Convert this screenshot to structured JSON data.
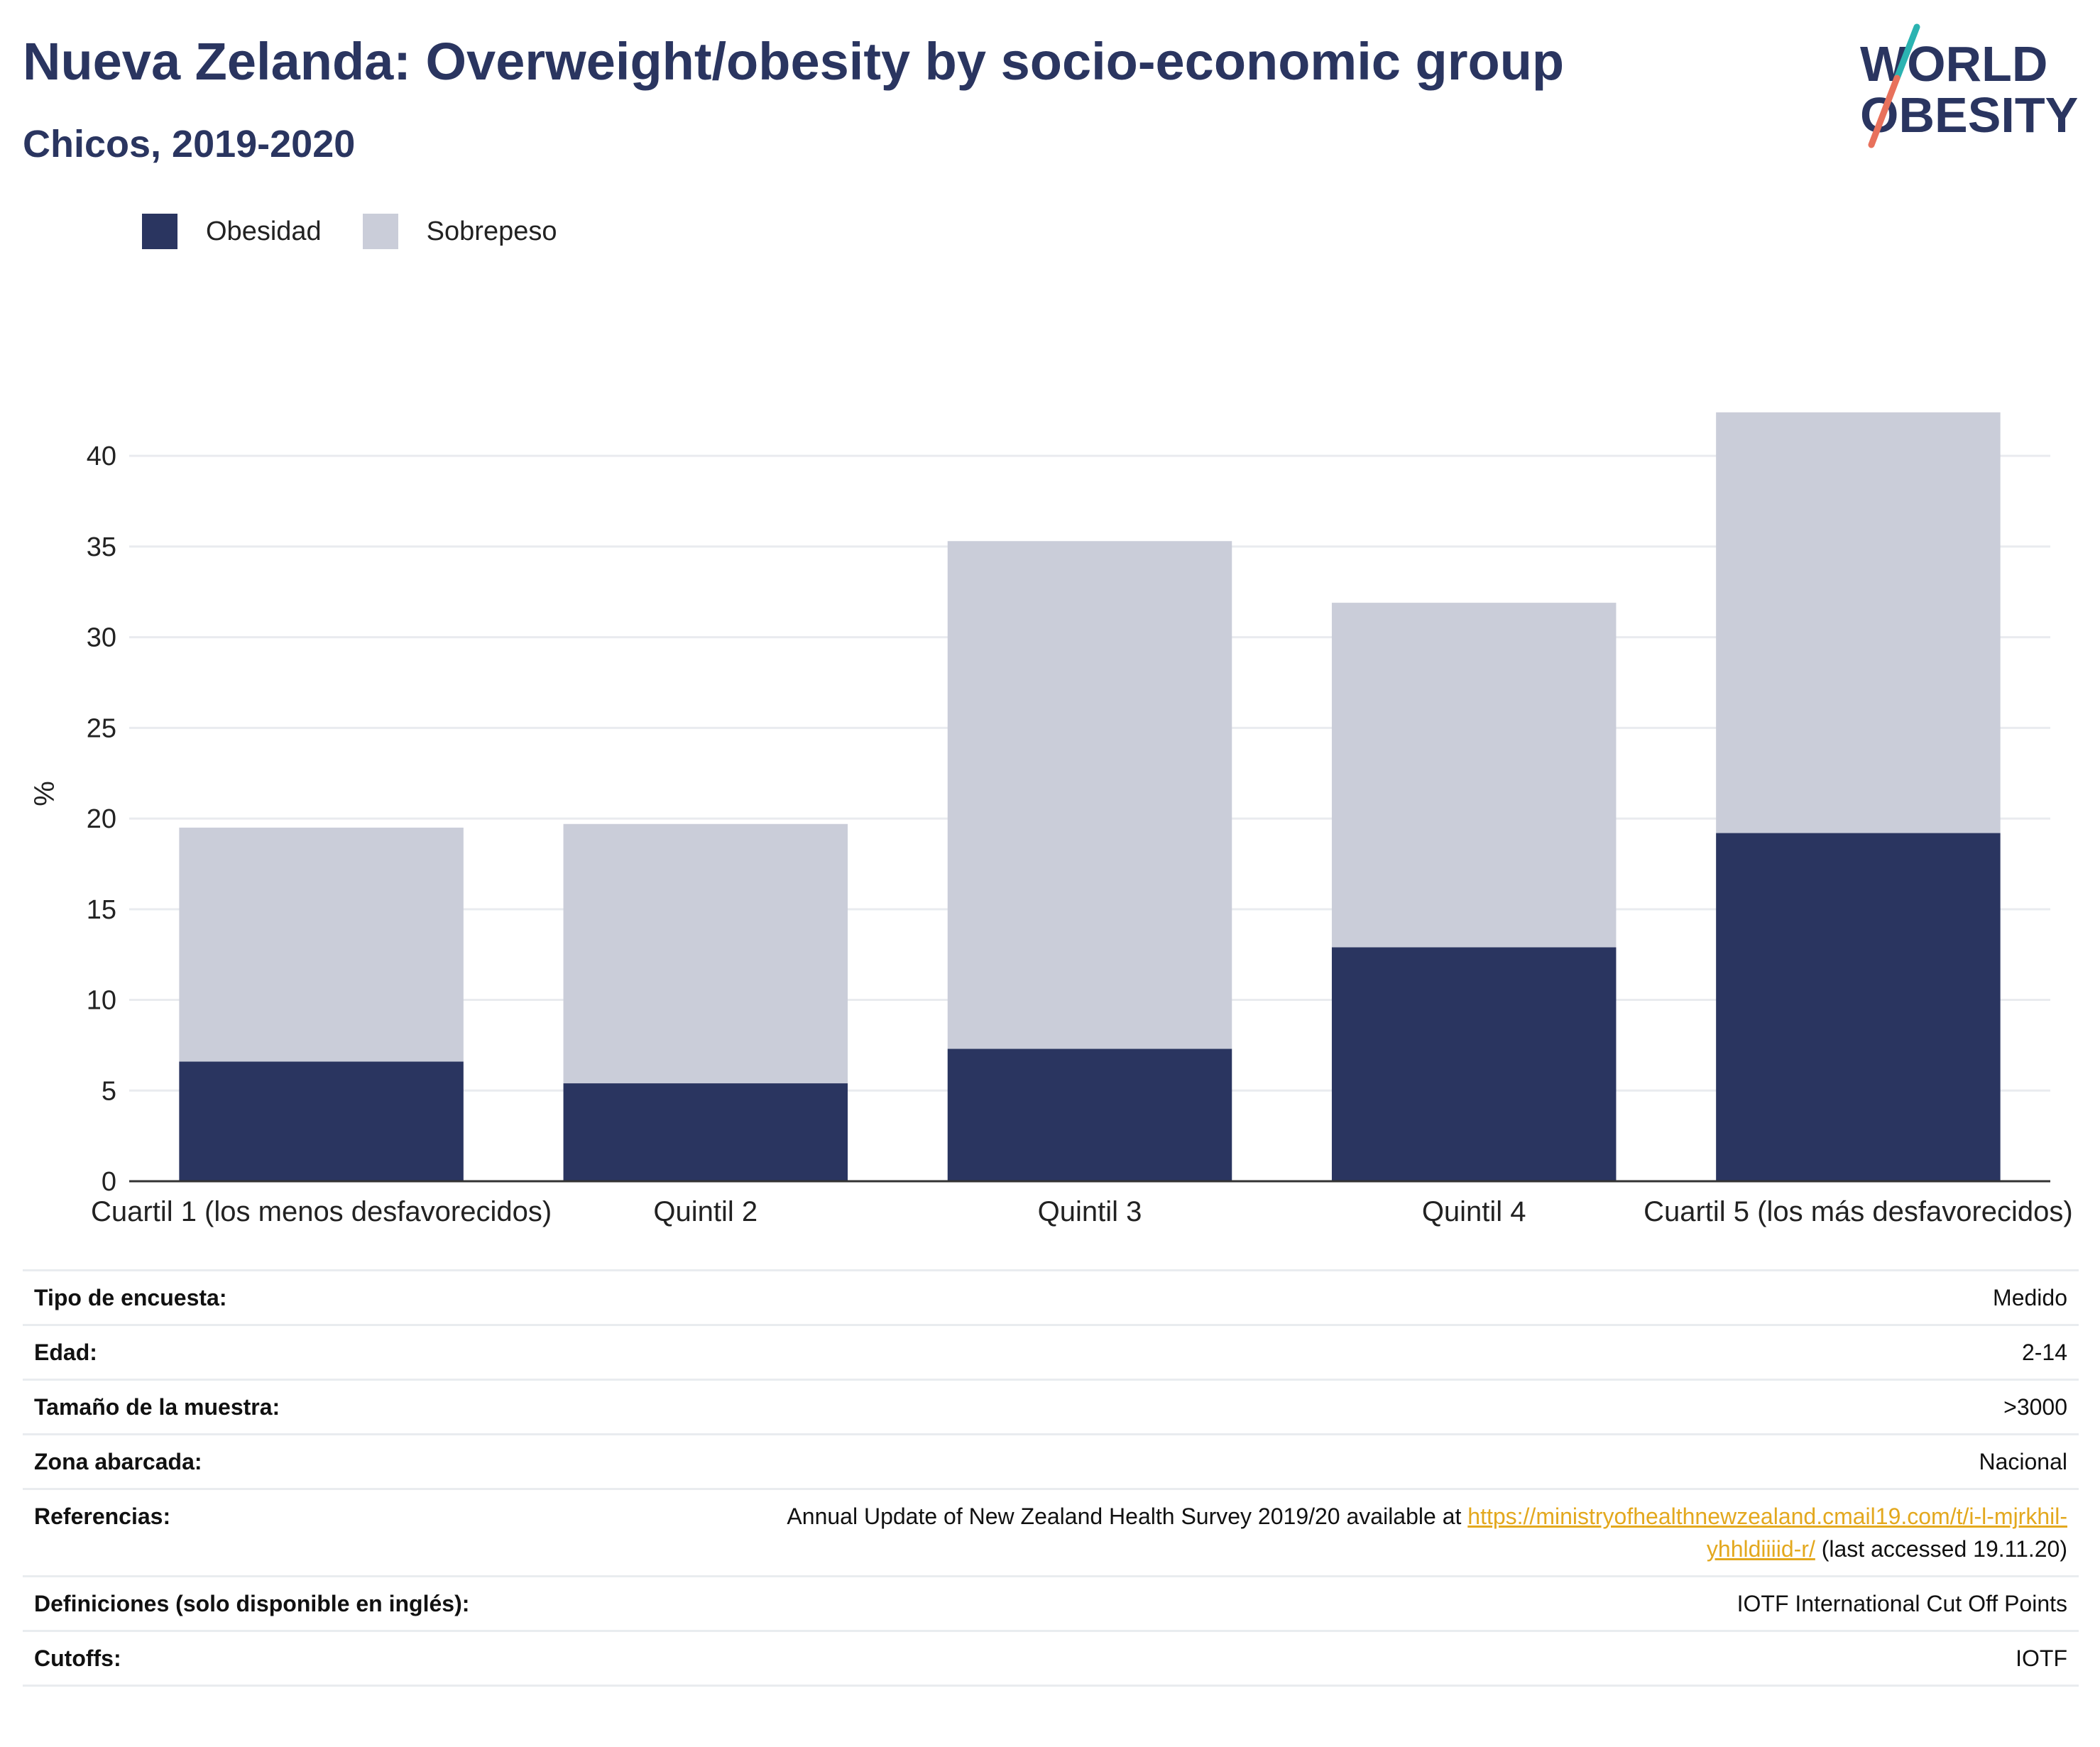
{
  "header": {
    "title": "Nueva Zelanda: Overweight/obesity by socio-economic group",
    "subtitle": "Chicos, 2019-2020"
  },
  "logo": {
    "line1": "WORLD",
    "line2": "OBESITY",
    "colors": {
      "text": "#2a3560",
      "slash_teal": "#2bb3b1",
      "slash_coral": "#e8715c"
    }
  },
  "colors": {
    "obesity": "#2a3560",
    "overweight": "#cacdd9",
    "grid": "#e9ebef",
    "axis": "#333333"
  },
  "chart_data": {
    "type": "bar",
    "stacked": true,
    "categories": [
      "Cuartil 1 (los menos desfavorecidos)",
      "Quintil 2",
      "Quintil 3",
      "Quintil 4",
      "Cuartil 5 (los más desfavorecidos)"
    ],
    "series": [
      {
        "name": "Obesidad",
        "values": [
          6.6,
          5.4,
          7.3,
          12.9,
          19.2
        ]
      },
      {
        "name": "Sobrepeso",
        "values": [
          12.9,
          14.3,
          28.0,
          19.0,
          23.2
        ]
      }
    ],
    "ylabel": "%",
    "xlabel": "",
    "ylim": [
      0,
      44
    ],
    "yticks": [
      0,
      5,
      10,
      15,
      20,
      25,
      30,
      35,
      40
    ],
    "grid": true,
    "legend_position": "top-left"
  },
  "info": {
    "rows": [
      {
        "key": "Tipo de encuesta:",
        "value": "Medido"
      },
      {
        "key": "Edad:",
        "value": "2-14"
      },
      {
        "key": "Tamaño de la muestra:",
        "value": ">3000"
      },
      {
        "key": "Zona abarcada:",
        "value": "Nacional"
      },
      {
        "key": "Definiciones (solo disponible en inglés):",
        "value": "IOTF International Cut Off Points"
      },
      {
        "key": "Cutoffs:",
        "value": "IOTF"
      }
    ],
    "references": {
      "key": "Referencias:",
      "text_before": "Annual Update of New Zealand Health Survey 2019/20 available at ",
      "link_line1": "https://ministryofhealthnewzealand.cmail19.com/t/i-l-mjrkhil-",
      "link_line2": "yhhldiiiid-r/",
      "text_after": " (last accessed 19.11.20)"
    }
  }
}
